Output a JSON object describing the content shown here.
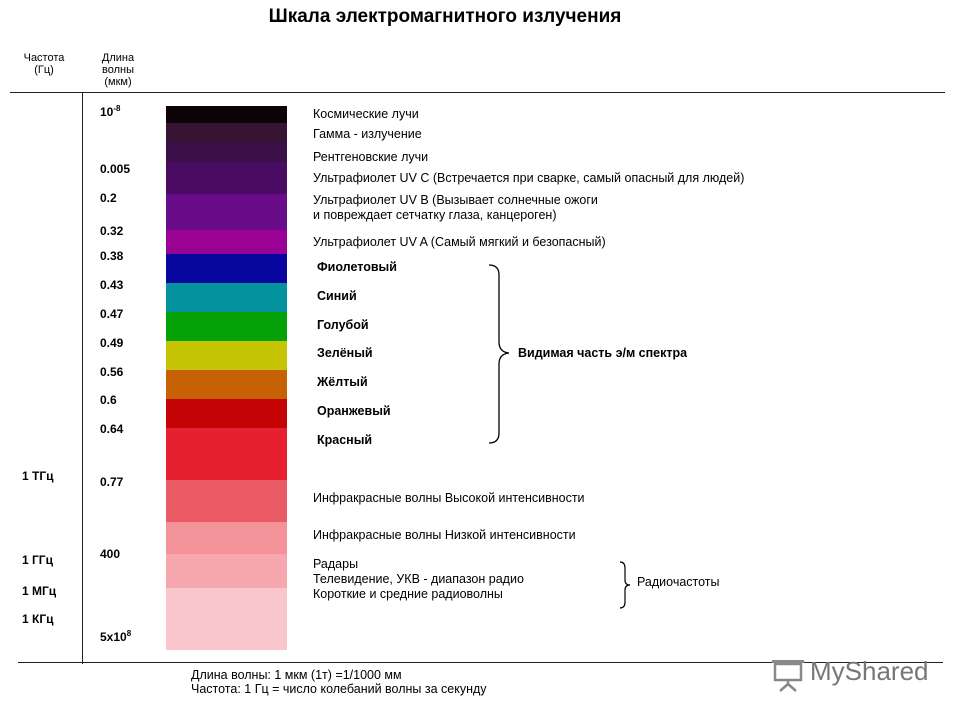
{
  "title": "Шкала электромагнитного излучения",
  "headers": {
    "freq_line1": "Частота",
    "freq_line2": "(Гц)",
    "wl_line1": "Длина",
    "wl_line2": "волны",
    "wl_line3": "(мкм)"
  },
  "wavelength_marks": {
    "m0_base": "10",
    "m0_exp": "-8",
    "m1": "0.005",
    "m2": "0.2",
    "m3": "0.32",
    "m4": "0.38",
    "m5": "0.43",
    "m6": "0.47",
    "m7": "0.49",
    "m8": "0.56",
    "m9": "0.6",
    "m10": "0.64",
    "m11": "0.77",
    "m12": "400",
    "m13_base": "5x10",
    "m13_exp": "8"
  },
  "frequency_marks": {
    "f0": "1 ТГц",
    "f1": "1 ГГц",
    "f2": "1 МГц",
    "f3": "1 КГц"
  },
  "band_colors": {
    "c0": "#0c0308",
    "c1": "#371432",
    "c2": "#3b0f47",
    "c3": "#4a0c62",
    "c4": "#680c8a",
    "c5": "#9a0296",
    "c6": "#0707a0",
    "c7": "#04939e",
    "c8": "#04a108",
    "c9": "#c4c404",
    "c10": "#c66205",
    "c11": "#c40404",
    "c12": "#e6202e",
    "c13": "#ea5a64",
    "c14": "#f39298",
    "c15": "#f6a8ae",
    "c16": "#f9c6cb"
  },
  "labels": {
    "cosmic": "Космические лучи",
    "gamma": "Гамма - излучение",
    "xray": "Рентгеновские лучи",
    "uvc": "Ультрафиолет UV C (Встречается при сварке, самый опасный для людей)",
    "uvb_line1": "Ультрафиолет UV B (Вызывает солнечные ожоги",
    "uvb_line2": "и повреждает сетчатку глаза, канцероген)",
    "uva": "Ультрафиолет UV A (Самый мягкий и безопасный)",
    "violet": "Фиолетовый",
    "blue": "Синий",
    "cyan": "Голубой",
    "green": "Зелёный",
    "yellow": "Жёлтый",
    "orange": "Оранжевый",
    "red": "Красный",
    "visible_spectrum": "Видимая часть э/м спектра",
    "ir_high": "Инфракрасные волны Высокой интенсивности",
    "ir_low": "Инфракрасные волны Низкой интенсивности",
    "radar": "Радары",
    "tv": "Телевидение, УКВ - диапазон радио",
    "short_medium": "Короткие и средние радиоволны",
    "radio_freq": "Радиочастоты"
  },
  "notes": {
    "n1": "Длина волны: 1 мкм (1т) =1/1000 мм",
    "n2": "Частота: 1 Гц = число колебаний волны за секунду"
  },
  "logo": {
    "text": "MyShared",
    "icon": "projector-screen-icon"
  }
}
